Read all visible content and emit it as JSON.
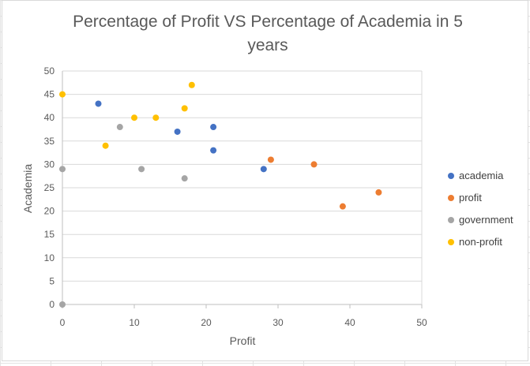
{
  "chart_data": {
    "type": "scatter",
    "title_lines": [
      "Percentage of Profit VS Percentage of Academia in 5",
      "years"
    ],
    "xlabel": "Profit",
    "ylabel": "Academia",
    "xlim": [
      0,
      50
    ],
    "ylim": [
      0,
      50
    ],
    "xticks": [
      0,
      10,
      20,
      30,
      40,
      50
    ],
    "yticks": [
      0,
      5,
      10,
      15,
      20,
      25,
      30,
      35,
      40,
      45,
      50
    ],
    "grid": "horizontal",
    "legend_position": "right",
    "series": [
      {
        "name": "academia",
        "color": "#4472C4",
        "points": [
          [
            5,
            43
          ],
          [
            16,
            37
          ],
          [
            21,
            38
          ],
          [
            21,
            33
          ],
          [
            28,
            29
          ]
        ]
      },
      {
        "name": "profit",
        "color": "#ED7D31",
        "points": [
          [
            29,
            31
          ],
          [
            35,
            30
          ],
          [
            39,
            21
          ],
          [
            44,
            24
          ]
        ]
      },
      {
        "name": "government",
        "color": "#A5A5A5",
        "points": [
          [
            0,
            29
          ],
          [
            0,
            0
          ],
          [
            8,
            38
          ],
          [
            11,
            29
          ],
          [
            17,
            27
          ]
        ]
      },
      {
        "name": "non-profit",
        "color": "#FFC000",
        "points": [
          [
            0,
            45
          ],
          [
            6,
            34
          ],
          [
            10,
            40
          ],
          [
            13,
            40
          ],
          [
            17,
            42
          ],
          [
            18,
            47
          ]
        ]
      }
    ]
  }
}
